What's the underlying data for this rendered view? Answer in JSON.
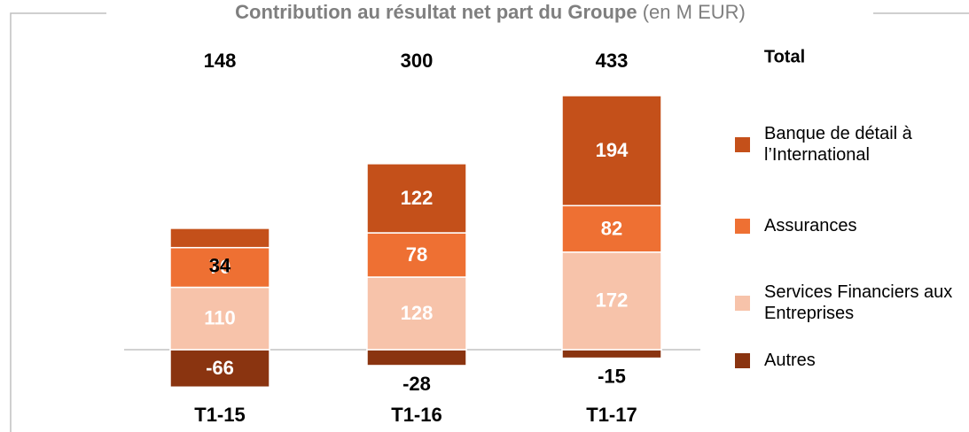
{
  "chart_data": {
    "type": "stacked-bar",
    "title": "Contribution au résultat net part du Groupe",
    "subtitle": "(en M EUR)",
    "total_label": "Total",
    "categories": [
      "T1-15",
      "T1-16",
      "T1-17"
    ],
    "totals": [
      148,
      300,
      433
    ],
    "series": [
      {
        "name": "Banque de détail à l’International",
        "color": "#c4501a",
        "values": [
          34,
          122,
          194
        ]
      },
      {
        "name": "Assurances",
        "color": "#ee7033",
        "values": [
          70,
          78,
          82
        ]
      },
      {
        "name": "Services Financiers aux Entreprises",
        "color": "#f7c3aa",
        "values": [
          110,
          128,
          172
        ]
      },
      {
        "name": "Autres",
        "color": "#8a3410",
        "values": [
          -66,
          -28,
          -15
        ]
      }
    ]
  }
}
